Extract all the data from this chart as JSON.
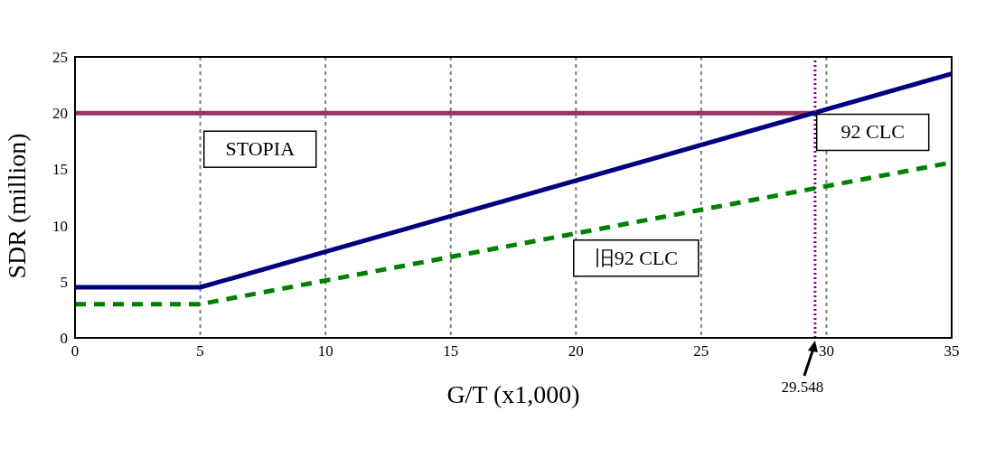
{
  "chart_data": {
    "type": "line",
    "xlabel": "G/T (x1,000)",
    "ylabel": "SDR (million)",
    "xlim": [
      0,
      35
    ],
    "xticks": [
      0,
      5,
      10,
      15,
      20,
      25,
      30,
      35
    ],
    "ylim": [
      0,
      25
    ],
    "yticks": [
      0,
      5,
      10,
      15,
      20,
      25
    ],
    "grid": "x",
    "legend": false,
    "marker": "none",
    "series": [
      {
        "name": "STOPIA",
        "color": "#993366",
        "x": [
          0,
          29.548
        ],
        "values": [
          20,
          20
        ],
        "line_style": "solid"
      },
      {
        "name": "92 CLC",
        "color": "#000080",
        "x": [
          0,
          5,
          35
        ],
        "values": [
          4.5,
          4.5,
          23.5
        ],
        "line_style": "solid"
      },
      {
        "name": "旧92 CLC",
        "color": "#008000",
        "x": [
          0,
          5,
          35
        ],
        "values": [
          3,
          3,
          15.6
        ],
        "line_style": "dashed"
      }
    ],
    "ref_lines": [
      {
        "axis": "x",
        "value": 29.548,
        "label": "29.548",
        "color": "#800080",
        "line_style": "dotted"
      }
    ]
  }
}
